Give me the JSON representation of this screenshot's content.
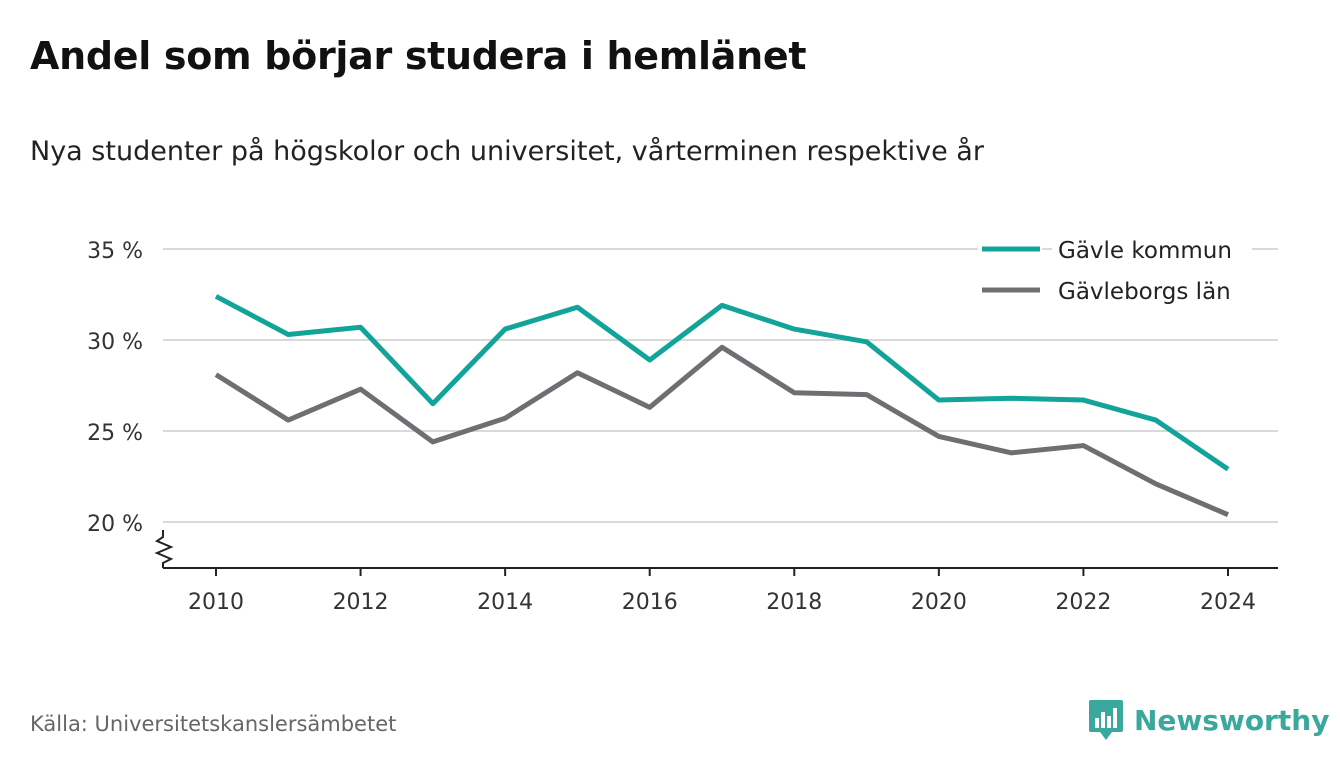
{
  "title": "Andel som börjar studera i hemlänet",
  "subtitle": "Nya studenter på högskolor och universitet, vårterminen respektive år",
  "source": "Källa: Universitetskanslersämbetet",
  "brand": {
    "name": "Newsworthy",
    "icon": "newsworthy-chart-bubble-icon",
    "color": "#3aa89c"
  },
  "chart_data": {
    "type": "line",
    "x": [
      2010,
      2011,
      2012,
      2013,
      2014,
      2015,
      2016,
      2017,
      2018,
      2019,
      2020,
      2021,
      2022,
      2023,
      2024
    ],
    "x_tick_labels": [
      "2010",
      "2012",
      "2014",
      "2016",
      "2018",
      "2020",
      "2022",
      "2024"
    ],
    "y_tick_labels": [
      "20 %",
      "25 %",
      "30 %",
      "35 %"
    ],
    "y_ticks": [
      20,
      25,
      30,
      35
    ],
    "ylim": [
      17.5,
      35.5
    ],
    "y_axis_broken": true,
    "grid": true,
    "legend_position": "top-right",
    "series": [
      {
        "name": "Gävle kommun",
        "color": "#12a399",
        "values": [
          32.4,
          30.3,
          30.7,
          26.5,
          30.6,
          31.8,
          28.9,
          31.9,
          30.6,
          29.9,
          26.7,
          26.8,
          26.7,
          25.6,
          22.9
        ]
      },
      {
        "name": "Gävleborgs län",
        "color": "#6f6e73",
        "values": [
          28.1,
          25.6,
          27.3,
          24.4,
          25.7,
          28.2,
          26.3,
          29.6,
          27.1,
          27.0,
          24.7,
          23.8,
          24.2,
          22.1,
          20.4
        ]
      }
    ]
  }
}
